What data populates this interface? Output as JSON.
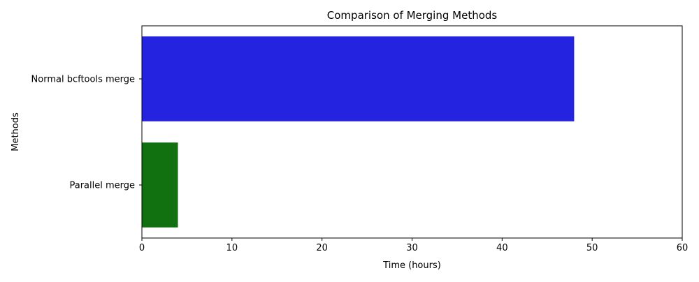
{
  "chart_data": {
    "type": "bar",
    "orientation": "horizontal",
    "title": "Comparison of Merging Methods",
    "xlabel": "Time (hours)",
    "ylabel": "Methods",
    "categories": [
      "Normal bcftools merge",
      "Parallel merge"
    ],
    "values": [
      48,
      4
    ],
    "colors": [
      "#2323e0",
      "#117010"
    ],
    "xlim": [
      0,
      60
    ],
    "xticks": [
      0,
      10,
      20,
      30,
      40,
      50,
      60
    ],
    "grid": false,
    "legend": "none"
  }
}
